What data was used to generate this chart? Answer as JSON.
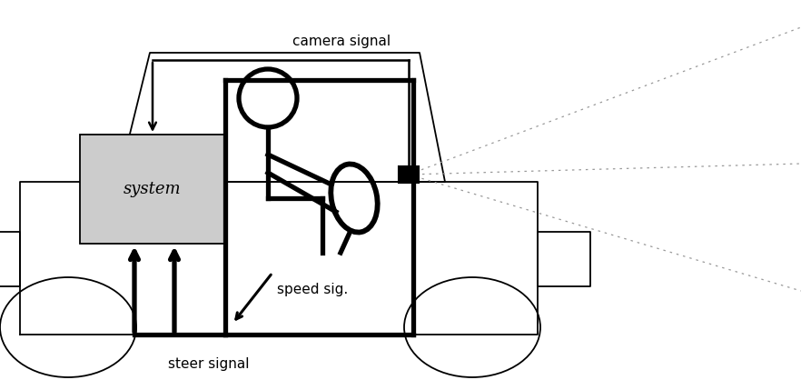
{
  "fig_width": 8.82,
  "fig_height": 4.18,
  "dpi": 100,
  "bg_color": "#ffffff",
  "black": "#000000",
  "gray": "#cccccc",
  "lw_thin": 1.3,
  "lw_thick": 3.8,
  "lw_medium": 1.8,
  "text_camera": "camera signal",
  "text_speed": "speed sig.",
  "text_steer": "steer signal",
  "text_system": "system",
  "fontsize_label": 11,
  "fontsize_system": 13
}
